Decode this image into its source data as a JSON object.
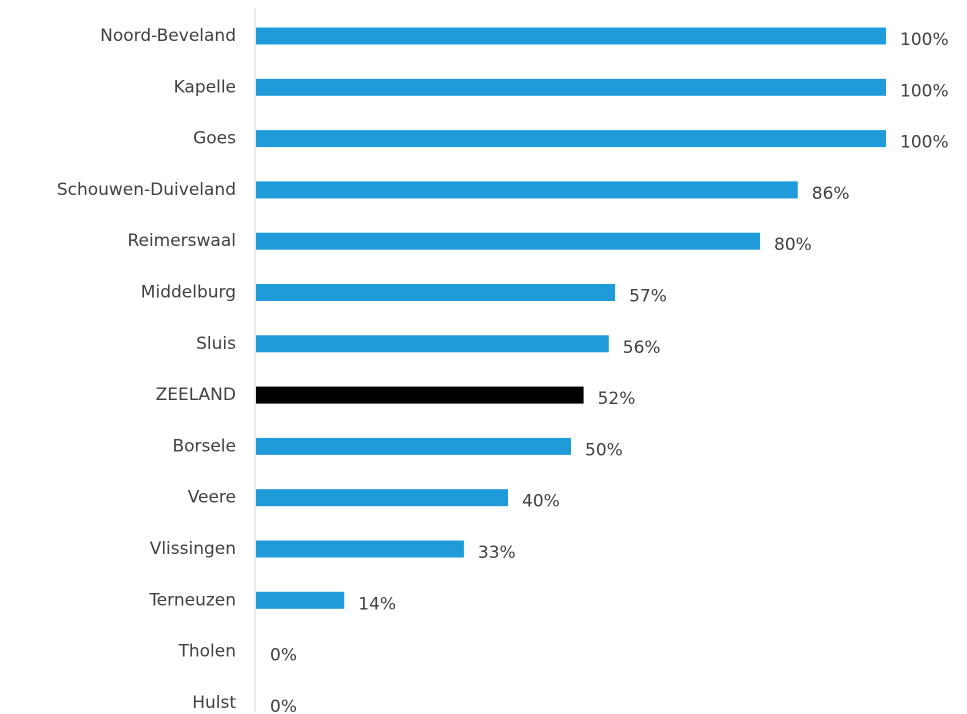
{
  "chart_data": {
    "type": "bar",
    "orientation": "horizontal",
    "title": "",
    "xlabel": "",
    "ylabel": "",
    "xlim": [
      0,
      100
    ],
    "grid": false,
    "legend": "none",
    "categories": [
      "Noord-Beveland",
      "Kapelle",
      "Goes",
      "Schouwen-Duiveland",
      "Reimerswaal",
      "Middelburg",
      "Sluis",
      "ZEELAND",
      "Borsele",
      "Veere",
      "Vlissingen",
      "Terneuzen",
      "Tholen",
      "Hulst"
    ],
    "values": [
      100,
      100,
      100,
      86,
      80,
      57,
      56,
      52,
      50,
      40,
      33,
      14,
      0,
      0
    ],
    "value_labels": [
      "100%",
      "100%",
      "100%",
      "86%",
      "80%",
      "57%",
      "56%",
      "52%",
      "50%",
      "40%",
      "33%",
      "14%",
      "0%",
      "0%"
    ],
    "highlight_category": "ZEELAND",
    "colors": {
      "bar": "#1f9bd9",
      "highlight": "#000000",
      "axis": "#d9d9d9",
      "text": "#404040"
    }
  }
}
